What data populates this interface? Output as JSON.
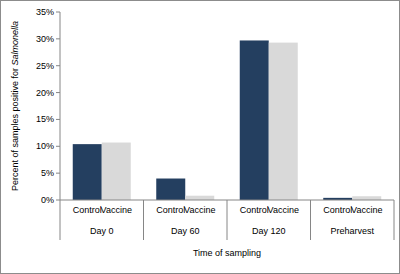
{
  "chart_data": {
    "type": "bar",
    "x_label": "Time of sampling",
    "y_label": "Percent of samples positive for Salmonella",
    "categories": [
      "Day 0",
      "Day 60",
      "Day 120",
      "Preharvest"
    ],
    "series": [
      {
        "name": "Control",
        "color": "#243f60",
        "values": [
          10.4,
          4.0,
          29.7,
          0.4
        ]
      },
      {
        "name": "Vaccine",
        "color": "#d9d9d9",
        "values": [
          10.7,
          0.8,
          29.3,
          0.7
        ]
      }
    ],
    "ylim": [
      0,
      35
    ],
    "yticks": [
      {
        "value": 0,
        "label": "0%"
      },
      {
        "value": 5,
        "label": "5%"
      },
      {
        "value": 10,
        "label": "10%"
      },
      {
        "value": 15,
        "label": "15%"
      },
      {
        "value": 20,
        "label": "20%"
      },
      {
        "value": 25,
        "label": "25%"
      },
      {
        "value": 30,
        "label": "30%"
      },
      {
        "value": 35,
        "label": "35%"
      }
    ],
    "grid": false
  }
}
